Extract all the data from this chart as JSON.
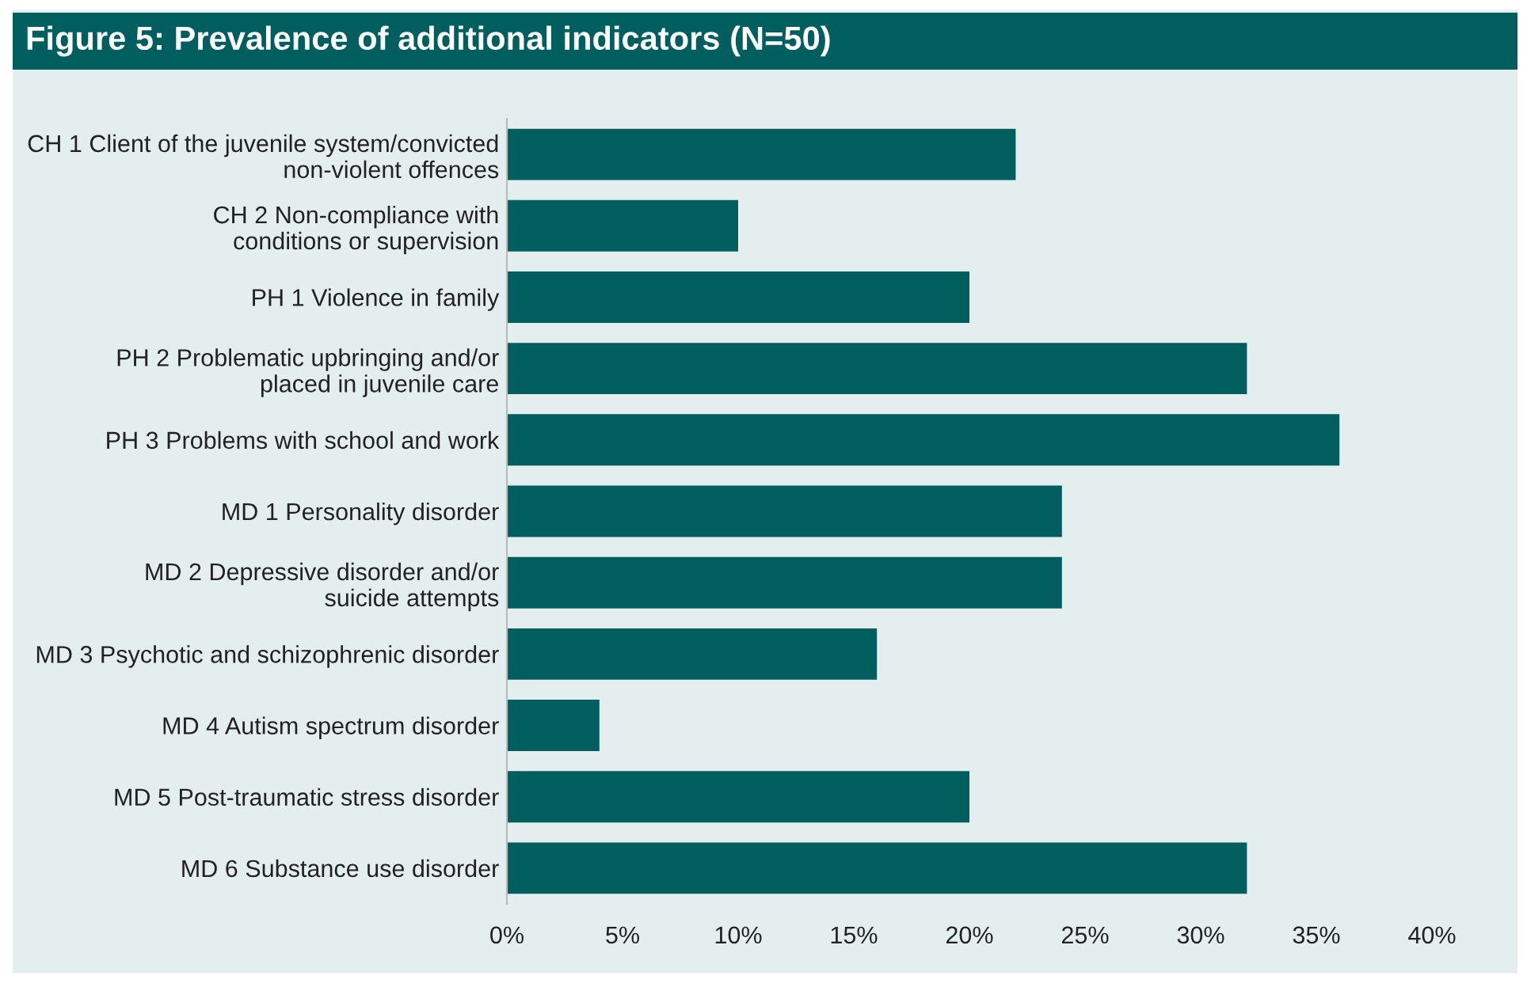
{
  "chart_data": {
    "type": "bar",
    "orientation": "horizontal",
    "title": "Figure 5: Prevalence of additional indicators (N=50)",
    "categories": [
      "CH 1 Client of the juvenile system/convicted\nnon-violent offences",
      "CH 2 Non-compliance with\nconditions or supervision",
      "PH 1 Violence in family",
      "PH 2 Problematic upbringing and/or\nplaced in juvenile care",
      "PH 3 Problems with school and work",
      "MD 1 Personality disorder",
      "MD 2 Depressive disorder and/or\nsuicide attempts",
      "MD 3 Psychotic and schizophrenic disorder",
      "MD 4 Autism spectrum disorder",
      "MD 5 Post-traumatic stress disorder",
      "MD 6 Substance use disorder"
    ],
    "values": [
      22,
      10,
      20,
      32,
      36,
      24,
      24,
      16,
      4,
      20,
      32
    ],
    "color": "#005e5e",
    "xlim": [
      0,
      40
    ],
    "xticks": [
      {
        "value": 0,
        "label": "0%"
      },
      {
        "value": 5,
        "label": "5%"
      },
      {
        "value": 10,
        "label": "10%"
      },
      {
        "value": 15,
        "label": "15%"
      },
      {
        "value": 20,
        "label": "20%"
      },
      {
        "value": 25,
        "label": "25%"
      },
      {
        "value": 30,
        "label": "30%"
      },
      {
        "value": 35,
        "label": "35%"
      },
      {
        "value": 40,
        "label": "40%"
      }
    ],
    "grid": false,
    "legend": false
  }
}
